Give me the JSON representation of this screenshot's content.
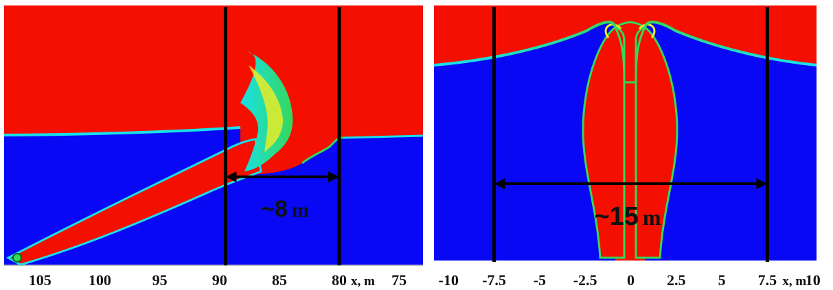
{
  "colors": {
    "gas": "#f40f00",
    "liquid": "#0808f4",
    "interface_cyan": "#19e0e8",
    "interface_green": "#35d85a",
    "interface_yellow": "#f2ee22",
    "frame": "#000000"
  },
  "chart_data": [
    {
      "type": "heatmap",
      "xlabel": "x, m",
      "x_ticks": [
        105,
        100,
        95,
        90,
        85,
        80,
        75
      ],
      "xlim": [
        108,
        73
      ],
      "markers_x": [
        89.5,
        80
      ],
      "annotation": {
        "text_approx": "~8",
        "text_unit": "m",
        "from_x": 89.5,
        "to_x": 80
      }
    },
    {
      "type": "heatmap",
      "xlabel": "x, m",
      "x_ticks": [
        -10,
        -7.5,
        -5,
        -2.5,
        0,
        2.5,
        5,
        7.5,
        10
      ],
      "x_tick_labels": [
        "-10",
        "-7.5",
        "-5",
        "-2.5",
        "0",
        "2.5",
        "5",
        "7.5",
        "10"
      ],
      "xlim": [
        -10.8,
        10.2
      ],
      "markers_x": [
        -7.5,
        7.5
      ],
      "annotation": {
        "text_approx": "~15",
        "text_unit": "m",
        "from_x": -7.5,
        "to_x": 7.5
      }
    }
  ]
}
